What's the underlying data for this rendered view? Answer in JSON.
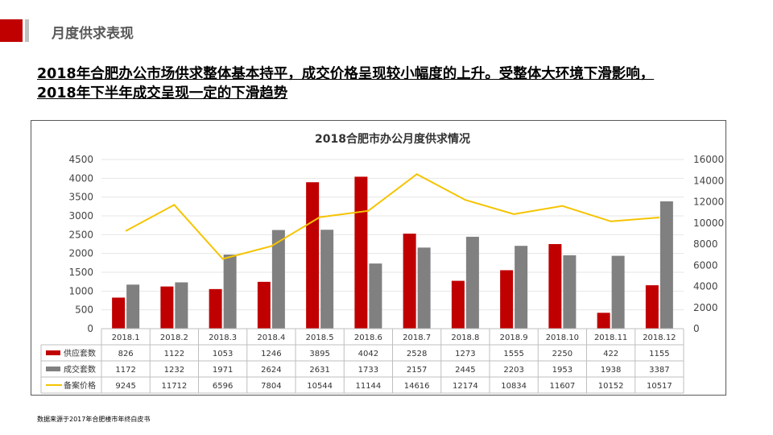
{
  "header": {
    "section_title": "月度供求表现"
  },
  "headline": {
    "line1": "2018年合肥办公市场供求整体基本持平，成交价格呈现较小幅度的上升。受整体大环境下滑影响，",
    "line2": "2018年下半年成交呈现一定的下滑趋势"
  },
  "chart_data": {
    "type": "bar",
    "title": "2018合肥市办公月度供求情况",
    "categories": [
      "2018.1",
      "2018.2",
      "2018.3",
      "2018.4",
      "2018.5",
      "2018.6",
      "2018.7",
      "2018.8",
      "2018.9",
      "2018.10",
      "2018.11",
      "2018.12"
    ],
    "series": [
      {
        "name": "供应套数",
        "type": "bar",
        "axis": "left",
        "color": "#c00000",
        "values": [
          826,
          1122,
          1053,
          1246,
          3895,
          4042,
          2528,
          1273,
          1555,
          2250,
          422,
          1155
        ]
      },
      {
        "name": "成交套数",
        "type": "bar",
        "axis": "left",
        "color": "#808080",
        "values": [
          1172,
          1232,
          1971,
          2624,
          2631,
          1733,
          2157,
          2445,
          2203,
          1953,
          1938,
          3387
        ]
      },
      {
        "name": "备案价格",
        "type": "line",
        "axis": "right",
        "color": "#f5c400",
        "values": [
          9245,
          11712,
          6596,
          7804,
          10544,
          11144,
          14616,
          12174,
          10834,
          11607,
          10152,
          10517
        ]
      }
    ],
    "ylim": [
      0,
      4500
    ],
    "yticks": [
      0,
      500,
      1000,
      1500,
      2000,
      2500,
      3000,
      3500,
      4000,
      4500
    ],
    "y2lim": [
      0,
      16000
    ],
    "y2ticks": [
      0,
      2000,
      4000,
      6000,
      8000,
      10000,
      12000,
      14000,
      16000
    ],
    "grid": true,
    "legend": "data-table"
  },
  "footer": {
    "source": "数据来源于2017年合肥楼市年终白皮书"
  }
}
